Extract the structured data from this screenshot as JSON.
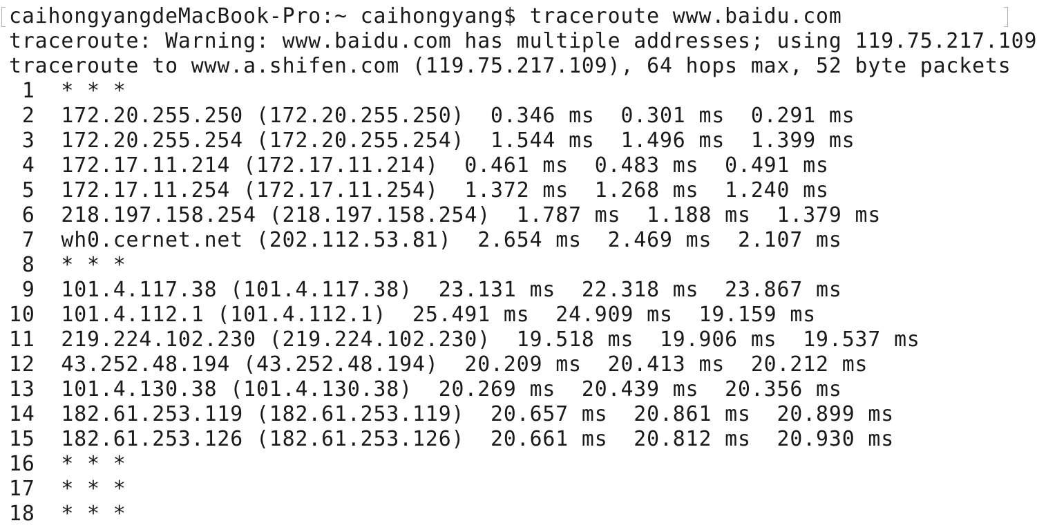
{
  "terminal": {
    "prompt": "caihongyangdeMacBook-Pro:~ caihongyang$ ",
    "command": "traceroute www.baidu.com",
    "output": [
      "traceroute: Warning: www.baidu.com has multiple addresses; using 119.75.217.109",
      "traceroute to www.a.shifen.com (119.75.217.109), 64 hops max, 52 byte packets",
      " 1  * * *",
      " 2  172.20.255.250 (172.20.255.250)  0.346 ms  0.301 ms  0.291 ms",
      " 3  172.20.255.254 (172.20.255.254)  1.544 ms  1.496 ms  1.399 ms",
      " 4  172.17.11.214 (172.17.11.214)  0.461 ms  0.483 ms  0.491 ms",
      " 5  172.17.11.254 (172.17.11.254)  1.372 ms  1.268 ms  1.240 ms",
      " 6  218.197.158.254 (218.197.158.254)  1.787 ms  1.188 ms  1.379 ms",
      " 7  wh0.cernet.net (202.112.53.81)  2.654 ms  2.469 ms  2.107 ms",
      " 8  * * *",
      " 9  101.4.117.38 (101.4.117.38)  23.131 ms  22.318 ms  23.867 ms",
      "10  101.4.112.1 (101.4.112.1)  25.491 ms  24.909 ms  19.159 ms",
      "11  219.224.102.230 (219.224.102.230)  19.518 ms  19.906 ms  19.537 ms",
      "12  43.252.48.194 (43.252.48.194)  20.209 ms  20.413 ms  20.212 ms",
      "13  101.4.130.38 (101.4.130.38)  20.269 ms  20.439 ms  20.356 ms",
      "14  182.61.253.119 (182.61.253.119)  20.657 ms  20.861 ms  20.899 ms",
      "15  182.61.253.126 (182.61.253.126)  20.661 ms  20.812 ms  20.930 ms",
      "16  * * *",
      "17  * * *",
      "18  * * *"
    ]
  }
}
